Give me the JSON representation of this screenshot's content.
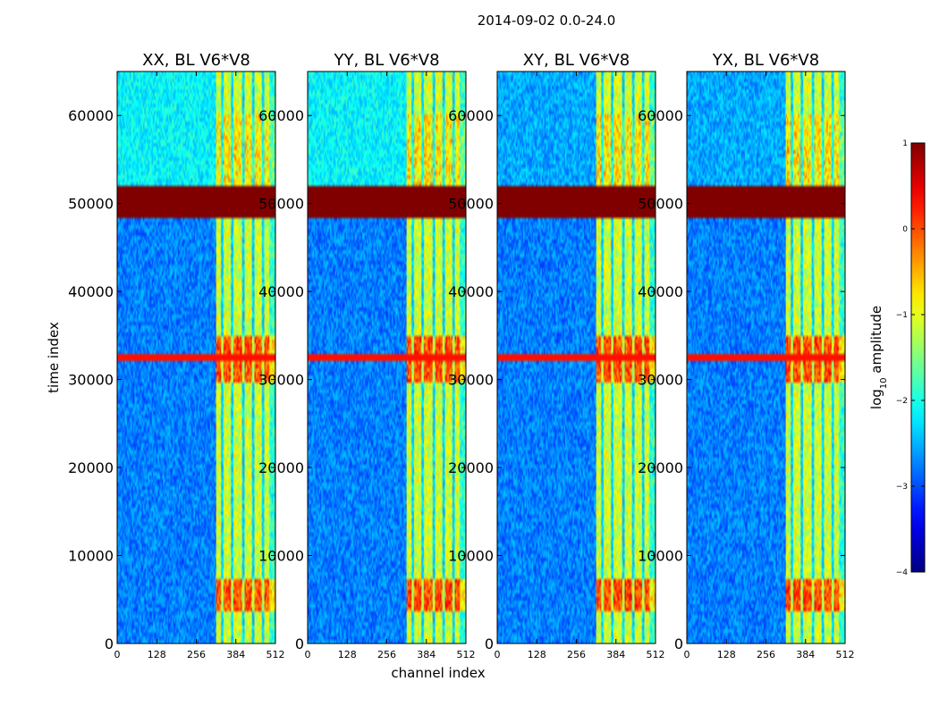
{
  "chart_data": {
    "type": "heatmap",
    "title": "2014-09-02 0.0-24.0",
    "xlabel": "channel index",
    "ylabel": "time index",
    "colorbar": {
      "label": "log10 amplitude",
      "label_main": "log",
      "label_sub": "10",
      "label_rest": " amplitude",
      "ticks": [
        1,
        0,
        -1,
        -2,
        -3,
        -4
      ],
      "tick_labels": [
        "1",
        "0",
        "−1",
        "−2",
        "−3",
        "−4"
      ],
      "range": [
        -4,
        1
      ],
      "colormap": "jet"
    },
    "xlim": [
      0,
      512
    ],
    "ylim": [
      0,
      65000
    ],
    "xticks": [
      0,
      128,
      256,
      384,
      512
    ],
    "xtick_labels": [
      "0",
      "128",
      "256",
      "384",
      "512"
    ],
    "yticks": [
      0,
      10000,
      20000,
      30000,
      40000,
      50000,
      60000
    ],
    "ytick_labels": [
      "0",
      "10000",
      "20000",
      "30000",
      "40000",
      "50000",
      "60000"
    ],
    "panels": [
      {
        "title": "XX, BL V6*V8",
        "pol": "XX"
      },
      {
        "title": "YY, BL V6*V8",
        "pol": "YY"
      },
      {
        "title": "XY, BL V6*V8",
        "pol": "XY"
      },
      {
        "title": "YX, BL V6*V8",
        "pol": "YX"
      }
    ],
    "features": {
      "flagged_time_band": [
        48200,
        52100
      ],
      "flagged_value": 1,
      "bright_channel_band": [
        322,
        512
      ],
      "bright_rfi_time_bands": [
        [
          3500,
          7500
        ],
        [
          29500,
          35000
        ]
      ],
      "horizontal_rfi_time": 32500
    }
  }
}
